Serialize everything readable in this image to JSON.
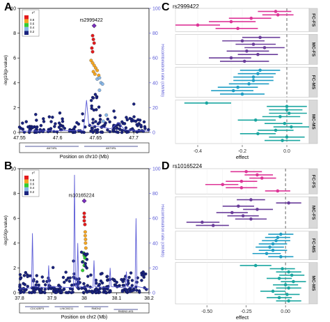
{
  "colors": {
    "pink": "#dd3497",
    "purple": "#6a3d9a",
    "teal_blue": "#1f9ec4",
    "teal": "#1aa6a0",
    "navy": "#1a1a6e",
    "recomb_line": "#5a5ad6",
    "r2_red": "#e31a1c",
    "r2_orange": "#f5a623",
    "r2_green": "#33cc33",
    "r2_lightblue": "#87b7e8",
    "r2_darkblue": "#1a237e"
  },
  "panels": {
    "A": {
      "letter": "A"
    },
    "B": {
      "letter": "B"
    },
    "C": {
      "letter": "C",
      "title": "rs2999422"
    },
    "D": {
      "letter": "D",
      "title": "rs10165224"
    }
  },
  "chart_data": [
    {
      "panel": "A",
      "type": "scatter",
      "title": "",
      "lead_snp": "rs2999422",
      "xlabel": "Position on chr10 (Mb)",
      "ylabel": "-log10(p-value)",
      "y2label": "Recombination rate (cM/Mb)",
      "xlim": [
        47.55,
        47.72
      ],
      "ylim": [
        0,
        10
      ],
      "y2lim": [
        0,
        100
      ],
      "x_ticks": [
        "47.55",
        "47.6",
        "47.65",
        "47.7"
      ],
      "y_ticks": [
        "0",
        "2",
        "4",
        "6",
        "8",
        "10"
      ],
      "y2_ticks": [
        "0",
        "20",
        "40",
        "60",
        "80",
        "100"
      ],
      "legend_title": "r²",
      "legend_levels": [
        "0.8",
        "0.6",
        "0.4",
        "0.2"
      ],
      "genes": [
        "ANTXRL",
        "ANTXRL"
      ],
      "lead_point": {
        "x": 47.648,
        "y": 8.6
      },
      "points_summary": {
        "r2_red": [
          [
            47.646,
            7.8
          ],
          [
            47.647,
            7.5
          ],
          [
            47.648,
            7.2
          ],
          [
            47.645,
            6.8
          ],
          [
            47.646,
            6.5
          ]
        ],
        "r2_orange": [
          [
            47.644,
            5.8
          ],
          [
            47.646,
            5.6
          ],
          [
            47.648,
            5.4
          ],
          [
            47.65,
            5.2
          ],
          [
            47.647,
            4.9
          ],
          [
            47.649,
            4.7
          ],
          [
            47.652,
            5.0
          ],
          [
            47.654,
            4.6
          ]
        ],
        "r2_lightblue": [
          [
            47.652,
            4.3
          ],
          [
            47.655,
            4.4
          ],
          [
            47.657,
            4.0
          ],
          [
            47.659,
            3.9
          ],
          [
            47.655,
            3.4
          ],
          [
            47.66,
            0.9
          ],
          [
            47.664,
            1.4
          ]
        ]
      },
      "recombination_peak": {
        "x": 47.64,
        "rate": 26
      }
    },
    {
      "panel": "B",
      "type": "scatter",
      "title": "",
      "lead_snp": "rs10165224",
      "xlabel": "Position on chr2 (Mb)",
      "ylabel": "-log10(p-value)",
      "y2label": "Recombination rate (cM/Mb)",
      "xlim": [
        37.8,
        38.2
      ],
      "ylim": [
        0,
        10
      ],
      "y2lim": [
        0,
        100
      ],
      "x_ticks": [
        "37.8",
        "37.9",
        "38",
        "38.1",
        "38.2"
      ],
      "y_ticks": [
        "0",
        "2",
        "4",
        "6",
        "8",
        "10"
      ],
      "y2_ticks": [
        "0",
        "20",
        "40",
        "60",
        "80",
        "100"
      ],
      "legend_title": "r²",
      "legend_levels": [
        "0.8",
        "0.6",
        "0.4",
        "0.2"
      ],
      "genes": [
        "CDC42EP3",
        "LINC00211",
        "RMDN2",
        "RMDN2-AS1"
      ],
      "lead_point": {
        "x": 38.0,
        "y": 7.4
      },
      "points_summary": {
        "r2_red": [
          [
            38.0,
            6.4
          ],
          [
            38.0,
            6.1
          ],
          [
            38.0,
            5.8
          ],
          [
            38.002,
            5.5
          ]
        ],
        "r2_orange": [
          [
            38.003,
            4.9
          ],
          [
            38.003,
            4.6
          ],
          [
            38.004,
            4.3
          ],
          [
            38.004,
            4.0
          ],
          [
            38.005,
            3.6
          ]
        ],
        "r2_green": [
          [
            37.998,
            3.2
          ],
          [
            38.0,
            3.0
          ],
          [
            38.002,
            2.8
          ],
          [
            37.996,
            2.5
          ],
          [
            38.0,
            2.2
          ],
          [
            37.995,
            1.8
          ]
        ]
      },
      "recombination_spikes": [
        {
          "x": 37.84,
          "rate": 48
        },
        {
          "x": 37.89,
          "rate": 22
        },
        {
          "x": 37.97,
          "rate": 95
        },
        {
          "x": 37.98,
          "rate": 40
        },
        {
          "x": 38.03,
          "rate": 26
        },
        {
          "x": 38.08,
          "rate": 20
        },
        {
          "x": 38.13,
          "rate": 17
        },
        {
          "x": 38.16,
          "rate": 60
        }
      ]
    },
    {
      "panel": "C",
      "type": "forest",
      "title": "rs2999422",
      "xlabel": "effect",
      "xlim": [
        -0.5,
        0.1
      ],
      "x_ticks": [
        "-0.4",
        "-0.2",
        "0.0"
      ],
      "reference_line": 0,
      "groups": [
        {
          "name": "FC-FS",
          "color_key": "pink",
          "rows": [
            {
              "est": -0.05,
              "lo": -0.13,
              "hi": 0.02
            },
            {
              "est": -0.04,
              "lo": -0.11,
              "hi": 0.03
            },
            {
              "est": -0.16,
              "lo": -0.26,
              "hi": -0.07
            },
            {
              "est": -0.25,
              "lo": -0.35,
              "hi": -0.14
            },
            {
              "est": -0.4,
              "lo": -0.5,
              "hi": -0.3
            },
            {
              "est": -0.22,
              "lo": -0.32,
              "hi": -0.13
            }
          ]
        },
        {
          "name": "MC-FS",
          "color_key": "purple",
          "rows": [
            {
              "est": -0.12,
              "lo": -0.2,
              "hi": -0.03
            },
            {
              "est": -0.2,
              "lo": -0.29,
              "hi": -0.1
            },
            {
              "est": -0.15,
              "lo": -0.23,
              "hi": -0.05
            },
            {
              "est": -0.1,
              "lo": -0.19,
              "hi": -0.01
            },
            {
              "est": -0.18,
              "lo": -0.27,
              "hi": -0.08
            },
            {
              "est": -0.13,
              "lo": -0.22,
              "hi": -0.04
            },
            {
              "est": -0.25,
              "lo": -0.35,
              "hi": -0.16
            },
            {
              "est": -0.19,
              "lo": -0.3,
              "hi": -0.08
            }
          ]
        },
        {
          "name": "FC-MS",
          "color_key": "teal_blue",
          "rows": [
            {
              "est": -0.12,
              "lo": -0.21,
              "hi": -0.03
            },
            {
              "est": -0.13,
              "lo": -0.22,
              "hi": -0.05
            },
            {
              "est": -0.15,
              "lo": -0.24,
              "hi": -0.06
            },
            {
              "est": -0.15,
              "lo": -0.24,
              "hi": -0.06
            },
            {
              "est": -0.17,
              "lo": -0.26,
              "hi": -0.08
            },
            {
              "est": -0.22,
              "lo": -0.31,
              "hi": -0.13
            },
            {
              "est": -0.24,
              "lo": -0.34,
              "hi": -0.15
            },
            {
              "est": -0.2,
              "lo": -0.3,
              "hi": -0.1
            }
          ]
        },
        {
          "name": "MC-MS",
          "color_key": "teal",
          "rows": [
            {
              "est": -0.36,
              "lo": -0.46,
              "hi": -0.25
            },
            {
              "est": 0.0,
              "lo": -0.09,
              "hi": 0.09
            },
            {
              "est": 0.0,
              "lo": -0.08,
              "hi": 0.07
            },
            {
              "est": 0.01,
              "lo": -0.08,
              "hi": 0.09
            },
            {
              "est": -0.03,
              "lo": -0.11,
              "hi": 0.06
            },
            {
              "est": -0.14,
              "lo": -0.22,
              "hi": -0.05
            },
            {
              "est": -0.01,
              "lo": -0.1,
              "hi": 0.07
            },
            {
              "est": 0.02,
              "lo": -0.06,
              "hi": 0.1
            },
            {
              "est": -0.05,
              "lo": -0.13,
              "hi": 0.03
            },
            {
              "est": -0.13,
              "lo": -0.21,
              "hi": -0.05
            },
            {
              "est": 0.0,
              "lo": -0.08,
              "hi": 0.08
            },
            {
              "est": -0.02,
              "lo": -0.1,
              "hi": 0.06
            }
          ]
        }
      ]
    },
    {
      "panel": "D",
      "type": "forest",
      "title": "rs10165224",
      "xlabel": "effect",
      "xlim": [
        -0.7,
        0.15
      ],
      "x_ticks": [
        "-0.50",
        "-0.25",
        "0.00"
      ],
      "reference_line": 0,
      "groups": [
        {
          "name": "FC-FS",
          "color_key": "pink",
          "rows": [
            {
              "est": -0.25,
              "lo": -0.35,
              "hi": -0.15
            },
            {
              "est": -0.18,
              "lo": -0.26,
              "hi": -0.08
            },
            {
              "est": -0.15,
              "lo": -0.23,
              "hi": -0.06
            },
            {
              "est": -0.28,
              "lo": -0.38,
              "hi": -0.18
            },
            {
              "est": -0.4,
              "lo": -0.51,
              "hi": -0.3
            },
            {
              "est": -0.28,
              "lo": -0.38,
              "hi": -0.18
            },
            {
              "est": -0.05,
              "lo": -0.13,
              "hi": 0.03
            }
          ]
        },
        {
          "name": "MC-FS",
          "color_key": "purple",
          "rows": [
            {
              "est": -0.22,
              "lo": -0.31,
              "hi": -0.13
            },
            {
              "est": 0.02,
              "lo": -0.06,
              "hi": 0.1
            },
            {
              "est": -0.3,
              "lo": -0.4,
              "hi": -0.2
            },
            {
              "est": -0.18,
              "lo": -0.27,
              "hi": -0.08
            },
            {
              "est": -0.34,
              "lo": -0.44,
              "hi": -0.24
            },
            {
              "est": -0.27,
              "lo": -0.37,
              "hi": -0.17
            },
            {
              "est": -0.22,
              "lo": -0.32,
              "hi": -0.12
            },
            {
              "est": -0.53,
              "lo": -0.63,
              "hi": -0.42
            },
            {
              "est": -0.46,
              "lo": -0.57,
              "hi": -0.36
            }
          ]
        },
        {
          "name": "FC-MS",
          "color_key": "teal_blue",
          "rows": [
            {
              "est": -0.03,
              "lo": -0.11,
              "hi": 0.05
            },
            {
              "est": -0.05,
              "lo": -0.13,
              "hi": 0.03
            },
            {
              "est": -0.06,
              "lo": -0.15,
              "hi": 0.03
            },
            {
              "est": -0.08,
              "lo": -0.17,
              "hi": 0.01
            },
            {
              "est": -0.1,
              "lo": -0.19,
              "hi": -0.01
            },
            {
              "est": -0.08,
              "lo": -0.17,
              "hi": 0.01
            },
            {
              "est": -0.12,
              "lo": -0.21,
              "hi": -0.03
            },
            {
              "est": -0.03,
              "lo": -0.11,
              "hi": 0.05
            }
          ]
        },
        {
          "name": "MC-MS",
          "color_key": "teal",
          "rows": [
            {
              "est": -0.19,
              "lo": -0.29,
              "hi": -0.09
            },
            {
              "est": -0.02,
              "lo": -0.1,
              "hi": 0.06
            },
            {
              "est": 0.02,
              "lo": -0.06,
              "hi": 0.1
            },
            {
              "est": 0.04,
              "lo": -0.04,
              "hi": 0.12
            },
            {
              "est": -0.04,
              "lo": -0.12,
              "hi": 0.04
            },
            {
              "est": 0.05,
              "lo": -0.03,
              "hi": 0.13
            },
            {
              "est": 0.0,
              "lo": -0.08,
              "hi": 0.08
            },
            {
              "est": 0.02,
              "lo": -0.06,
              "hi": 0.1
            },
            {
              "est": -0.08,
              "lo": -0.16,
              "hi": 0.0
            },
            {
              "est": 0.01,
              "lo": -0.07,
              "hi": 0.09
            },
            {
              "est": -0.04,
              "lo": -0.12,
              "hi": 0.04
            },
            {
              "est": 0.02,
              "lo": -0.06,
              "hi": 0.1
            }
          ]
        }
      ]
    }
  ]
}
